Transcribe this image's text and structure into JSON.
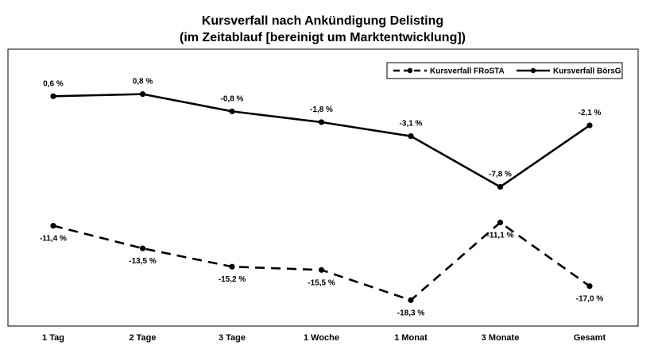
{
  "chart_data": {
    "type": "line",
    "title": "Kursverfall nach Ankündigung Delisting",
    "subtitle": "(im Zeitablauf [bereinigt um Marktentwicklung])",
    "xlabel": "",
    "ylabel": "",
    "categories": [
      "1 Tag",
      "2 Tage",
      "3 Tage",
      "1 Woche",
      "1 Monat",
      "3 Monate",
      "Gesamt"
    ],
    "ylim": [
      -20,
      2
    ],
    "grid": false,
    "legend_position": "top-right",
    "series": [
      {
        "name": "Kursverfall FRoSTA",
        "values": [
          -11.4,
          -13.5,
          -15.2,
          -15.5,
          -18.3,
          -11.1,
          -17.0
        ],
        "labels": [
          "-11,4 %",
          "-13,5 %",
          "-15,2 %",
          "-15,5 %",
          "-18,3 %",
          "-11,1 %",
          "-17,0 %"
        ],
        "style": "dashed",
        "color": "#000000"
      },
      {
        "name": "Kursverfall BörsG",
        "values": [
          0.6,
          0.8,
          -0.8,
          -1.8,
          -3.1,
          -7.8,
          -2.1
        ],
        "labels": [
          "0,6 %",
          "0,8 %",
          "-0,8 %",
          "-1,8 %",
          "-3,1 %",
          "-7,8 %",
          "-2,1 %"
        ],
        "style": "solid",
        "color": "#000000"
      }
    ]
  }
}
